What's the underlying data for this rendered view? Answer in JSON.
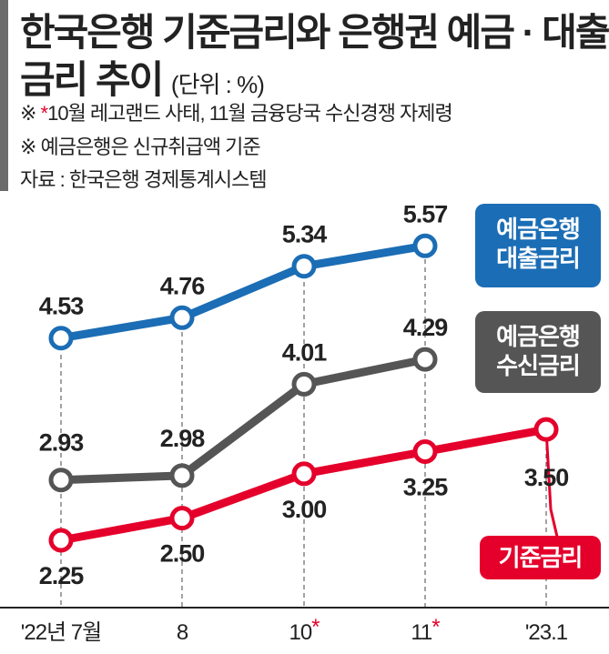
{
  "title_line1": "한국은행 기준금리와 은행권 예금 · 대출",
  "title_line2": "금리 추이",
  "unit": "(단위 : %)",
  "notes": [
    {
      "mark": "※ ",
      "star": "*",
      "text": "10월 레고랜드 사태, 11월 금융당국 수신경쟁 자제령"
    },
    {
      "mark": "※ ",
      "text": "예금은행은 신규취급액 기준"
    }
  ],
  "source": "자료 : 한국은행 경제통계시스템",
  "colors": {
    "loan": "#1b6db5",
    "deposit": "#555555",
    "base": "#e4002b"
  },
  "chart_data": {
    "type": "line",
    "categories": [
      "'22년 7월",
      "8",
      "10",
      "11",
      "'23.1"
    ],
    "category_marks": [
      "",
      "",
      "*",
      "*",
      ""
    ],
    "grid": "vertical dashed",
    "series": [
      {
        "name": "예금은행 대출금리",
        "values": [
          4.53,
          4.76,
          5.34,
          5.57,
          null
        ],
        "labels": [
          "4.53",
          "4.76",
          "5.34",
          "5.57",
          ""
        ]
      },
      {
        "name": "예금은행 수신금리",
        "values": [
          2.93,
          2.98,
          4.01,
          4.29,
          null
        ],
        "labels": [
          "2.93",
          "2.98",
          "4.01",
          "4.29",
          ""
        ]
      },
      {
        "name": "기준금리",
        "values": [
          2.25,
          2.5,
          3.0,
          3.25,
          3.5
        ],
        "labels": [
          "2.25",
          "2.50",
          "3.00",
          "3.25",
          "3.50"
        ]
      }
    ]
  },
  "legend": {
    "loan": [
      "예금은행",
      "대출금리"
    ],
    "deposit": [
      "예금은행",
      "수신금리"
    ],
    "base": "기준금리"
  }
}
